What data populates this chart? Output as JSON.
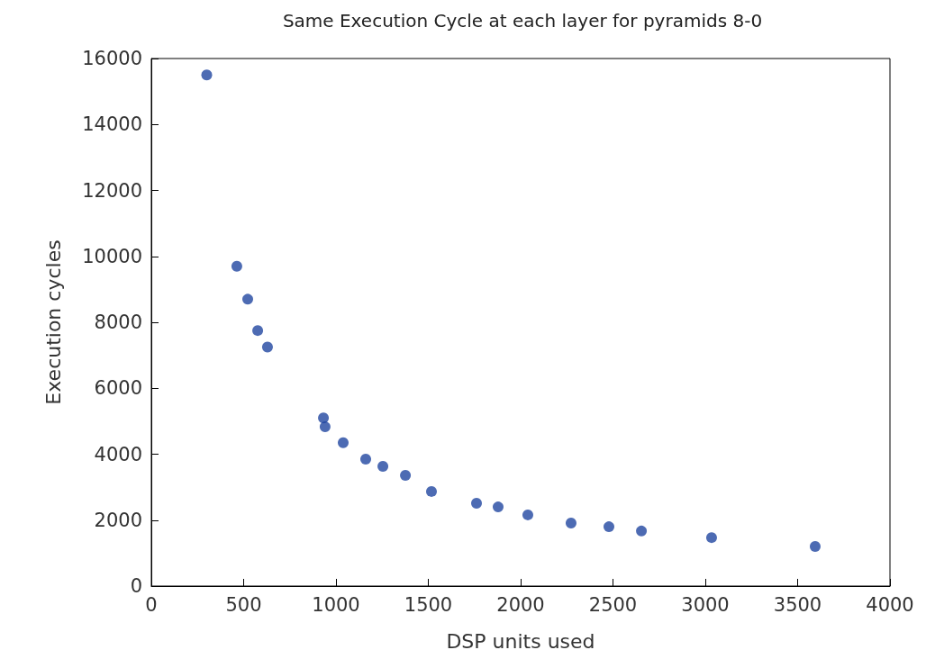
{
  "chart_data": {
    "type": "scatter",
    "title": "Same Execution Cycle at each layer for pyramids 8-0",
    "xlabel": "DSP units used",
    "ylabel": "Execution cycles",
    "x": [
      300,
      463,
      522,
      576,
      629,
      932,
      941,
      1039,
      1161,
      1254,
      1376,
      1517,
      1761,
      1878,
      2039,
      2273,
      2478,
      2654,
      3034,
      3595
    ],
    "values": [
      15500,
      9700,
      8700,
      7750,
      7250,
      5100,
      4830,
      4350,
      3850,
      3630,
      3360,
      2870,
      2510,
      2400,
      2160,
      1910,
      1800,
      1670,
      1470,
      1200
    ],
    "color": "#2046a0",
    "marker": "circle",
    "xlim": [
      0,
      4000
    ],
    "xticks": [
      0,
      500,
      1000,
      1500,
      2000,
      2500,
      3000,
      3500,
      4000
    ],
    "ylim": [
      0,
      16000
    ],
    "yticks": [
      0,
      2000,
      4000,
      6000,
      8000,
      10000,
      12000,
      14000,
      16000
    ],
    "grid": false
  }
}
